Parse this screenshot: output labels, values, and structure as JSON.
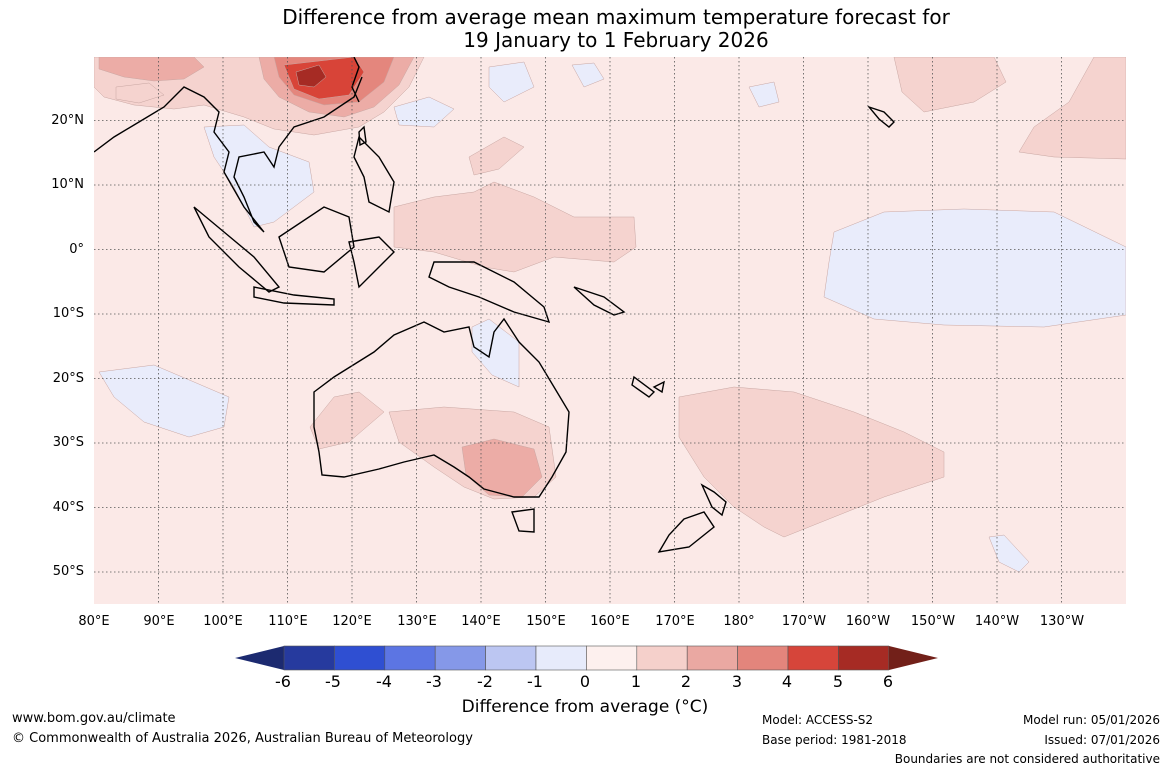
{
  "title_line1": "Difference from average mean maximum temperature forecast for",
  "title_line2": "19 January to 1 February 2026",
  "lat_labels": [
    "20°N",
    "10°N",
    "0°",
    "10°S",
    "20°S",
    "30°S",
    "40°S",
    "50°S"
  ],
  "lon_labels": [
    "80°E",
    "90°E",
    "100°E",
    "110°E",
    "120°E",
    "130°E",
    "140°E",
    "150°E",
    "160°E",
    "170°E",
    "180°",
    "170°W",
    "160°W",
    "150°W",
    "140°W",
    "130°W"
  ],
  "colorbar": {
    "ticks": [
      "-6",
      "-5",
      "-4",
      "-3",
      "-2",
      "-1",
      "0",
      "1",
      "2",
      "3",
      "4",
      "5",
      "6"
    ],
    "colors": [
      "#263a9e",
      "#2f4fd2",
      "#5c75e3",
      "#8598e8",
      "#bcc6f2",
      "#e7ebfb",
      "#fdf0ee",
      "#f5d0cb",
      "#eaa8a2",
      "#e3857c",
      "#d6453a",
      "#a62b24"
    ],
    "low_extend_color": "#1c2a70",
    "high_extend_color": "#722019",
    "label": "Difference from average (°C)"
  },
  "map_colors": {
    "background": "#fbe9e7",
    "anomaly_0_1": "#fdf0ee",
    "anomaly_1_2": "#f5d3cf",
    "anomaly_2_3": "#ecaca6",
    "anomaly_3_4": "#e4867d",
    "anomaly_4_5": "#d84438",
    "anomaly_5_6": "#a62b24",
    "anomaly_neg1_0": "#e9ecfb"
  },
  "footer": {
    "website": "www.bom.gov.au/climate",
    "copyright": "© Commonwealth of Australia 2026, Australian Bureau of Meteorology",
    "model": "Model: ACCESS-S2",
    "base_period": "Base period: 1981-2018",
    "model_run": "Model run: 05/01/2026",
    "issued": "Issued: 07/01/2026",
    "disclaimer": "Boundaries are not considered authoritative"
  }
}
